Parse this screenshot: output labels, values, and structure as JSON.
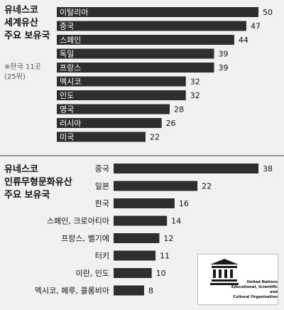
{
  "heritage_title": [
    "유네스코",
    "세계유산",
    "주요 보유국"
  ],
  "heritage_note": [
    "※한국 11곳",
    "(25위)"
  ],
  "intangible_title": [
    "유네스코",
    "인류무형문화유산",
    "주요 보유국"
  ],
  "logo": {
    "lines": [
      "United Nations",
      "Educational, Scientific and",
      "Cultural Organization"
    ]
  },
  "colors": {
    "bar": "#2e2e2e",
    "background": "#f1f1f1",
    "text": "#111111"
  },
  "chart_data": [
    {
      "type": "bar",
      "orientation": "horizontal",
      "categories": [
        "이탈리아",
        "중국",
        "스페인",
        "독일",
        "프랑스",
        "멕시코",
        "인도",
        "영국",
        "러시아",
        "미국"
      ],
      "values": [
        50,
        47,
        44,
        39,
        39,
        32,
        32,
        28,
        26,
        22
      ]
    },
    {
      "type": "bar",
      "orientation": "horizontal",
      "categories": [
        "중국",
        "일본",
        "한국",
        "스페인, 크로아티아",
        "프랑스, 벨기에",
        "터키",
        "이란, 인도",
        "멕시코, 페루, 콜롬비아"
      ],
      "values": [
        38,
        22,
        16,
        14,
        12,
        11,
        10,
        8
      ]
    }
  ]
}
